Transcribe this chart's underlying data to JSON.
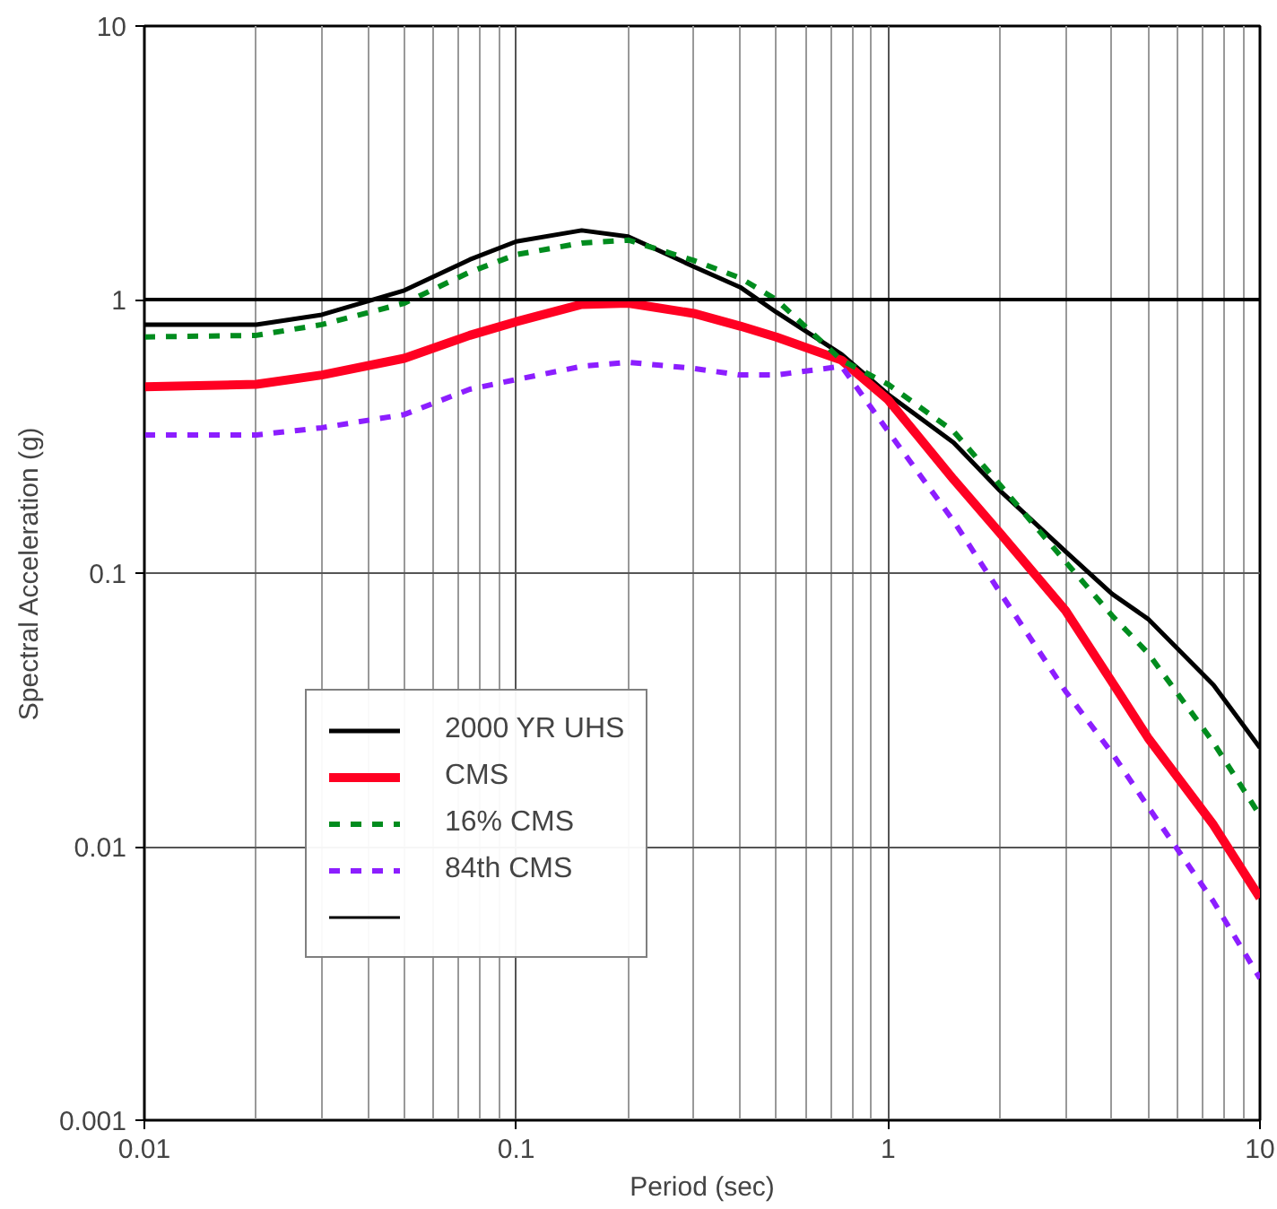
{
  "chart_data": {
    "type": "line",
    "xlabel": "Period (sec)",
    "ylabel": "Spectral Acceleration (g)",
    "x": [
      0.01,
      0.02,
      0.03,
      0.05,
      0.075,
      0.1,
      0.15,
      0.2,
      0.3,
      0.4,
      0.5,
      0.75,
      1,
      1.5,
      2,
      3,
      4,
      5,
      7.5,
      10
    ],
    "series": [
      {
        "name": "2000 YR UHS",
        "color": "#000000",
        "line_style": "solid",
        "values": [
          0.81,
          0.81,
          0.88,
          1.08,
          1.4,
          1.63,
          1.79,
          1.7,
          1.32,
          1.11,
          0.9,
          0.63,
          0.45,
          0.3,
          0.2,
          0.12,
          0.084,
          0.068,
          0.039,
          0.023
        ]
      },
      {
        "name": "CMS",
        "color": "#ff0022",
        "line_style": "solid",
        "values": [
          0.48,
          0.49,
          0.53,
          0.61,
          0.74,
          0.83,
          0.96,
          0.97,
          0.89,
          0.8,
          0.73,
          0.6,
          0.43,
          0.22,
          0.14,
          0.073,
          0.04,
          0.025,
          0.012,
          0.0065
        ]
      },
      {
        "name": "16% CMS",
        "color": "#008c1e",
        "line_style": "dashed",
        "values": [
          0.73,
          0.74,
          0.81,
          0.97,
          1.26,
          1.46,
          1.61,
          1.65,
          1.39,
          1.2,
          1.0,
          0.6,
          0.49,
          0.33,
          0.21,
          0.11,
          0.07,
          0.051,
          0.024,
          0.013
        ]
      },
      {
        "name": "84th CMS",
        "color": "#8c1eff",
        "line_style": "dashed",
        "values": [
          0.32,
          0.32,
          0.34,
          0.38,
          0.47,
          0.51,
          0.57,
          0.59,
          0.56,
          0.53,
          0.53,
          0.57,
          0.33,
          0.155,
          0.085,
          0.037,
          0.022,
          0.014,
          0.0063,
          0.0033
        ]
      }
    ],
    "ref_lines": [
      {
        "axis": "y",
        "value": 1,
        "color": "#000000"
      }
    ],
    "log": "xy",
    "xlim": [
      0.01,
      10
    ],
    "ylim": [
      0.001,
      10
    ],
    "xticks": [
      0.01,
      0.1,
      1,
      10
    ],
    "yticks": [
      0.001,
      0.01,
      0.1,
      1,
      10
    ],
    "grid": true,
    "legend": "bottom left",
    "marker": "none"
  }
}
